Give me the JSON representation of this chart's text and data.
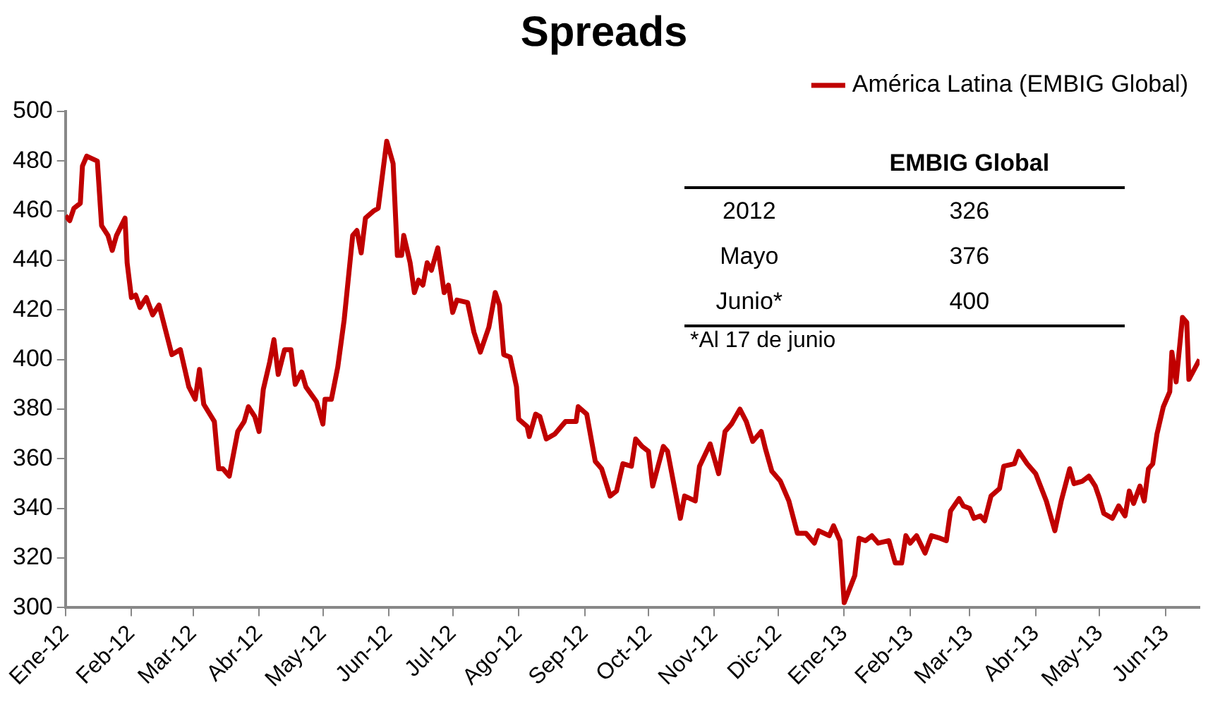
{
  "chart_data": {
    "type": "line",
    "title": "Spreads",
    "x": [
      "2012-01-01",
      "2012-01-03",
      "2012-01-05",
      "2012-01-08",
      "2012-01-09",
      "2012-01-11",
      "2012-01-16",
      "2012-01-18",
      "2012-01-21",
      "2012-01-23",
      "2012-01-25",
      "2012-01-29",
      "2012-01-30",
      "2012-02-01",
      "2012-02-03",
      "2012-02-05",
      "2012-02-08",
      "2012-02-11",
      "2012-02-14",
      "2012-02-17",
      "2012-02-20",
      "2012-02-24",
      "2012-02-28",
      "2012-03-02",
      "2012-03-04",
      "2012-03-06",
      "2012-03-11",
      "2012-03-13",
      "2012-03-15",
      "2012-03-18",
      "2012-03-22",
      "2012-03-25",
      "2012-03-27",
      "2012-03-30",
      "2012-04-01",
      "2012-04-03",
      "2012-04-06",
      "2012-04-08",
      "2012-04-10",
      "2012-04-13",
      "2012-04-16",
      "2012-04-18",
      "2012-04-21",
      "2012-04-23",
      "2012-04-28",
      "2012-05-01",
      "2012-05-02",
      "2012-05-05",
      "2012-05-08",
      "2012-05-11",
      "2012-05-15",
      "2012-05-17",
      "2012-05-19",
      "2012-05-21",
      "2012-05-25",
      "2012-05-27",
      "2012-05-31",
      "2012-06-03",
      "2012-06-05",
      "2012-06-07",
      "2012-06-08",
      "2012-06-11",
      "2012-06-13",
      "2012-06-15",
      "2012-06-17",
      "2012-06-19",
      "2012-06-21",
      "2012-06-24",
      "2012-06-27",
      "2012-06-29",
      "2012-07-01",
      "2012-07-03",
      "2012-07-08",
      "2012-07-11",
      "2012-07-14",
      "2012-07-18",
      "2012-07-21",
      "2012-07-23",
      "2012-07-25",
      "2012-07-28",
      "2012-07-31",
      "2012-08-01",
      "2012-08-05",
      "2012-08-06",
      "2012-08-09",
      "2012-08-11",
      "2012-08-14",
      "2012-08-18",
      "2012-08-23",
      "2012-08-28",
      "2012-08-29",
      "2012-09-02",
      "2012-09-06",
      "2012-09-09",
      "2012-09-13",
      "2012-09-16",
      "2012-09-19",
      "2012-09-23",
      "2012-09-25",
      "2012-09-28",
      "2012-10-01",
      "2012-10-03",
      "2012-10-08",
      "2012-10-10",
      "2012-10-14",
      "2012-10-16",
      "2012-10-18",
      "2012-10-23",
      "2012-10-25",
      "2012-10-30",
      "2012-11-03",
      "2012-11-06",
      "2012-11-09",
      "2012-11-13",
      "2012-11-16",
      "2012-11-19",
      "2012-11-23",
      "2012-11-25",
      "2012-11-28",
      "2012-12-02",
      "2012-12-06",
      "2012-12-10",
      "2012-12-14",
      "2012-12-18",
      "2012-12-20",
      "2012-12-25",
      "2012-12-27",
      "2012-12-30",
      "2013-01-01",
      "2013-01-06",
      "2013-01-08",
      "2013-01-11",
      "2013-01-14",
      "2013-01-17",
      "2013-01-22",
      "2013-01-25",
      "2013-01-28",
      "2013-01-30",
      "2013-02-01",
      "2013-02-04",
      "2013-02-08",
      "2013-02-11",
      "2013-02-15",
      "2013-02-18",
      "2013-02-20",
      "2013-02-24",
      "2013-02-26",
      "2013-03-01",
      "2013-03-03",
      "2013-03-06",
      "2013-03-08",
      "2013-03-11",
      "2013-03-15",
      "2013-03-17",
      "2013-03-22",
      "2013-03-24",
      "2013-03-28",
      "2013-04-01",
      "2013-04-06",
      "2013-04-10",
      "2013-04-13",
      "2013-04-17",
      "2013-04-19",
      "2013-04-23",
      "2013-04-26",
      "2013-04-29",
      "2013-05-01",
      "2013-05-03",
      "2013-05-07",
      "2013-05-10",
      "2013-05-13",
      "2013-05-15",
      "2013-05-17",
      "2013-05-20",
      "2013-05-22",
      "2013-05-24",
      "2013-05-26",
      "2013-05-28",
      "2013-05-31",
      "2013-06-03",
      "2013-06-04",
      "2013-06-06",
      "2013-06-09",
      "2013-06-11",
      "2013-06-12",
      "2013-06-17"
    ],
    "series": [
      {
        "name": "América Latina (EMBIG Global)",
        "color": "#c00000",
        "values": [
          458,
          456,
          461,
          463,
          478,
          482,
          480,
          454,
          450,
          444,
          450,
          457,
          439,
          425,
          426,
          421,
          425,
          418,
          422,
          412,
          402,
          404,
          389,
          384,
          396,
          382,
          375,
          356,
          356,
          353,
          371,
          375,
          381,
          377,
          371,
          388,
          399,
          408,
          394,
          404,
          404,
          390,
          395,
          389,
          383,
          374,
          384,
          384,
          397,
          416,
          450,
          452,
          443,
          457,
          460,
          461,
          488,
          479,
          442,
          442,
          450,
          439,
          427,
          432,
          430,
          439,
          436,
          445,
          427,
          430,
          419,
          424,
          423,
          411,
          403,
          413,
          427,
          422,
          402,
          401,
          389,
          376,
          373,
          369,
          378,
          377,
          368,
          370,
          375,
          375,
          381,
          378,
          359,
          356,
          345,
          347,
          358,
          357,
          368,
          365,
          363,
          349,
          365,
          363,
          345,
          336,
          345,
          343,
          357,
          366,
          354,
          371,
          374,
          380,
          375,
          367,
          371,
          364,
          355,
          351,
          343,
          330,
          330,
          326,
          331,
          329,
          333,
          327,
          302,
          313,
          328,
          327,
          329,
          326,
          327,
          318,
          318,
          329,
          326,
          329,
          322,
          329,
          328,
          327,
          339,
          344,
          341,
          340,
          336,
          337,
          335,
          345,
          348,
          357,
          358,
          363,
          358,
          354,
          343,
          331,
          343,
          356,
          350,
          351,
          353,
          349,
          344,
          338,
          336,
          341,
          337,
          347,
          342,
          349,
          343,
          356,
          358,
          370,
          381,
          387,
          403,
          391,
          417,
          415,
          392,
          400
        ]
      }
    ],
    "xlim": [
      "2012-01-01",
      "2013-06-17"
    ],
    "xticks": [
      {
        "value": "2012-01",
        "label": "Ene-12"
      },
      {
        "value": "2012-02",
        "label": "Feb-12"
      },
      {
        "value": "2012-03",
        "label": "Mar-12"
      },
      {
        "value": "2012-04",
        "label": "Abr-12"
      },
      {
        "value": "2012-05",
        "label": "May-12"
      },
      {
        "value": "2012-06",
        "label": "Jun-12"
      },
      {
        "value": "2012-07",
        "label": "Jul-12"
      },
      {
        "value": "2012-08",
        "label": "Ago-12"
      },
      {
        "value": "2012-09",
        "label": "Sep-12"
      },
      {
        "value": "2012-10",
        "label": "Oct-12"
      },
      {
        "value": "2012-11",
        "label": "Nov-12"
      },
      {
        "value": "2012-12",
        "label": "Dic-12"
      },
      {
        "value": "2013-01",
        "label": "Ene-13"
      },
      {
        "value": "2013-02",
        "label": "Feb-13"
      },
      {
        "value": "2013-03",
        "label": "Mar-13"
      },
      {
        "value": "2013-04",
        "label": "Abr-13"
      },
      {
        "value": "2013-05",
        "label": "May-13"
      },
      {
        "value": "2013-06",
        "label": "Jun-13"
      }
    ],
    "ylim": [
      300,
      500
    ],
    "yticks": [
      300,
      320,
      340,
      360,
      380,
      400,
      420,
      440,
      460,
      480,
      500
    ],
    "grid": false,
    "legend": "top right",
    "annotations": [
      "EMBIG Global",
      "2012",
      "326",
      "Mayo",
      "376",
      "Junio*",
      "400",
      "*Al 17 de junio"
    ]
  }
}
